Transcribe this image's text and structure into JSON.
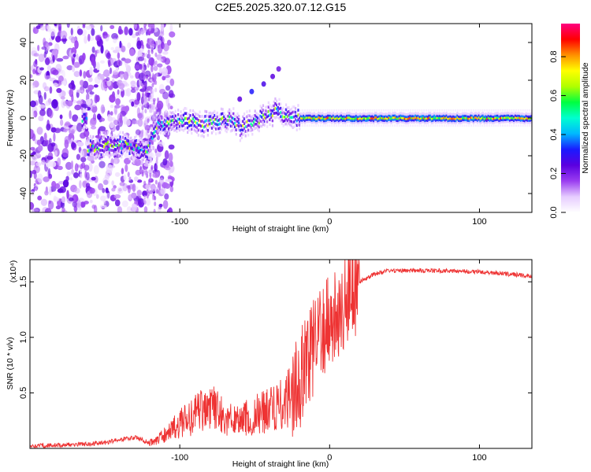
{
  "title": "C2E5.2025.320.07.12.G15",
  "chart_data": [
    {
      "type": "heatmap",
      "name": "spectrogram",
      "xlabel": "Height of straight line (km)",
      "ylabel": "Frequency (Hz)",
      "xlim": [
        -200,
        135
      ],
      "ylim": [
        -50,
        50
      ],
      "xticks": [
        -100,
        0,
        100
      ],
      "xtick_labels": [
        "-100",
        "0",
        "100"
      ],
      "yticks": [
        -40,
        -20,
        0,
        20,
        40
      ],
      "ytick_labels": [
        "-40",
        "-20",
        "0",
        "20",
        "40"
      ],
      "colorbar": {
        "label": "Normalized spectral amplitude",
        "range": [
          0,
          0.97
        ],
        "ticks": [
          0,
          0.2,
          0.4,
          0.6,
          0.8
        ],
        "tick_labels": [
          "0.0",
          "0.2",
          "0.4",
          "0.6",
          "0.8"
        ],
        "colormap": [
          "#ffffff",
          "#e6ccff",
          "#9a3df0",
          "#5a00e0",
          "#1a1aff",
          "#00b8ff",
          "#00ffd0",
          "#00ff40",
          "#b0ff00",
          "#ffff00",
          "#ff9000",
          "#ff0000",
          "#ff0080"
        ]
      },
      "ridge": [
        {
          "x": -162,
          "y": -16
        },
        {
          "x": -150,
          "y": -15
        },
        {
          "x": -140,
          "y": -14
        },
        {
          "x": -130,
          "y": -15
        },
        {
          "x": -122,
          "y": -17
        },
        {
          "x": -115,
          "y": -4
        },
        {
          "x": -105,
          "y": -2
        },
        {
          "x": -95,
          "y": -2
        },
        {
          "x": -85,
          "y": -3
        },
        {
          "x": -75,
          "y": -2
        },
        {
          "x": -65,
          "y": -1
        },
        {
          "x": -60,
          "y": -5
        },
        {
          "x": -50,
          "y": -2
        },
        {
          "x": -40,
          "y": 2
        },
        {
          "x": -35,
          "y": 4
        },
        {
          "x": -30,
          "y": 1
        },
        {
          "x": -20,
          "y": 0
        },
        {
          "x": 0,
          "y": 0
        },
        {
          "x": 50,
          "y": 0
        },
        {
          "x": 135,
          "y": 0
        }
      ]
    },
    {
      "type": "line",
      "name": "snr",
      "xlabel": "Height of straight line (km)",
      "ylabel": "SNR (10 * v/v)",
      "y_multiplier": "(x10⁴)",
      "xlim": [
        -200,
        135
      ],
      "ylim": [
        0,
        1.7
      ],
      "xticks": [
        -100,
        0,
        100
      ],
      "xtick_labels": [
        "-100",
        "0",
        "100"
      ],
      "yticks": [
        0.5,
        1.0,
        1.5
      ],
      "ytick_labels": [
        "0.5",
        "1.0",
        "1.5"
      ],
      "color": "#ee3333",
      "series": [
        {
          "name": "SNR",
          "x": [
            -200,
            -180,
            -160,
            -150,
            -140,
            -130,
            -120,
            -110,
            -100,
            -90,
            -80,
            -70,
            -60,
            -50,
            -40,
            -30,
            -20,
            -15,
            -10,
            -5,
            0,
            10,
            20,
            30,
            40,
            60,
            80,
            100,
            120,
            135
          ],
          "values": [
            0.02,
            0.03,
            0.04,
            0.05,
            0.08,
            0.1,
            0.05,
            0.12,
            0.22,
            0.3,
            0.38,
            0.28,
            0.25,
            0.3,
            0.35,
            0.4,
            0.6,
            0.8,
            0.95,
            1.0,
            1.12,
            1.35,
            1.5,
            1.57,
            1.6,
            1.6,
            1.6,
            1.59,
            1.57,
            1.55
          ]
        }
      ]
    }
  ]
}
